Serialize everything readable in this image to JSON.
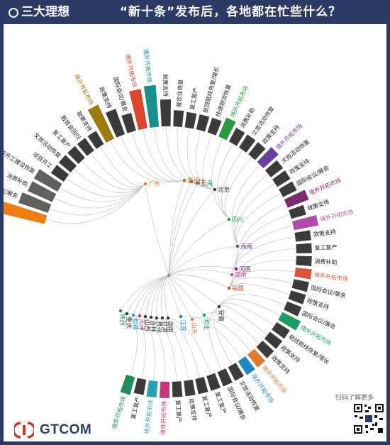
{
  "header": {
    "logo_text": "三大理想",
    "title": "“新十条”发布后，各地都在忙些什么？"
  },
  "footer": {
    "brand": "GTCOM",
    "scan_text": "扫码了解更多"
  },
  "colors": {
    "header_bg": "#2c3a66",
    "ring": "#3b3b3b",
    "leader_line": "#c9c9c9"
  },
  "chart_data": {
    "type": "radial-tree",
    "segments": [
      {
        "label": "境外开拓市场",
        "color": "#f07d11",
        "value": 1.0
      },
      {
        "label": "国际会议/展会",
        "color": "#606060",
        "value": 0.55
      },
      {
        "label": "消费补助",
        "color": "#606060",
        "value": 0.45
      },
      {
        "label": "基础设施建设开工建设恢复",
        "color": "#606060",
        "value": 0.45
      },
      {
        "label": "项目开工",
        "color": "#3b3b3b",
        "value": 0.18
      },
      {
        "label": "文旅活动恢复",
        "color": "#3b3b3b",
        "value": 0.18
      },
      {
        "label": "复工复产",
        "color": "#3b3b3b",
        "value": 0.18
      },
      {
        "label": "服贸会回归",
        "color": "#3b3b3b",
        "value": 0.18
      },
      {
        "label": "政策支持",
        "color": "#3b3b3b",
        "value": 0.18
      },
      {
        "label": "境外开拓市场",
        "color": "#9c7b10",
        "value": 0.7
      },
      {
        "label": "政策支持",
        "color": "#3b3b3b",
        "value": 0.45
      },
      {
        "label": "国际会议/展会",
        "color": "#3b3b3b",
        "value": 0.25
      },
      {
        "label": "境外开拓市场",
        "color": "#e0452c",
        "value": 0.75
      },
      {
        "label": "境外开拓市场",
        "color": "#1b8f8b",
        "value": 0.8
      },
      {
        "label": "政策支持",
        "color": "#3b3b3b",
        "value": 0.45
      },
      {
        "label": "餐饮业恢复",
        "color": "#3b3b3b",
        "value": 0.2
      },
      {
        "label": "复工复产",
        "color": "#3b3b3b",
        "value": 0.18
      },
      {
        "label": "航班航线恢复/增长",
        "color": "#3b3b3b",
        "value": 0.18
      },
      {
        "label": "快递物流恢复",
        "color": "#3b3b3b",
        "value": 0.18
      },
      {
        "label": "境外开拓市场",
        "color": "#2b9a3f",
        "value": 0.3
      },
      {
        "label": "消费补助",
        "color": "#3b3b3b",
        "value": 0.18
      },
      {
        "label": "文旅活动恢复",
        "color": "#3b3b3b",
        "value": 0.18
      },
      {
        "label": "政策支持",
        "color": "#3b3b3b",
        "value": 0.18
      },
      {
        "label": "境外开拓市场",
        "color": "#6a3fa0",
        "value": 0.3
      },
      {
        "label": "文旅活动恢复",
        "color": "#3b3b3b",
        "value": 0.18
      },
      {
        "label": "政策支持",
        "color": "#3b3b3b",
        "value": 0.18
      },
      {
        "label": "国际会议/展会",
        "color": "#3b3b3b",
        "value": 0.18
      },
      {
        "label": "境外开拓市场",
        "color": "#7a2d6e",
        "value": 0.35
      },
      {
        "label": "政策支持",
        "color": "#3b3b3b",
        "value": 0.18
      },
      {
        "label": "境外开拓市场",
        "color": "#b24ba8",
        "value": 0.4
      },
      {
        "label": "政策支持",
        "color": "#3b3b3b",
        "value": 0.18
      },
      {
        "label": "复工复产",
        "color": "#3b3b3b",
        "value": 0.18
      },
      {
        "label": "消费补助",
        "color": "#3b3b3b",
        "value": 0.18
      },
      {
        "label": "境外开拓市场",
        "color": "#d9533f",
        "value": 0.2
      },
      {
        "label": "国际会议/展会",
        "color": "#3b3b3b",
        "value": 0.18
      },
      {
        "label": "政策支持",
        "color": "#3b3b3b",
        "value": 0.18
      },
      {
        "label": "国际会议/展会",
        "color": "#3b3b3b",
        "value": 0.18
      },
      {
        "label": "境外开拓市场",
        "color": "#1d9e64",
        "value": 0.3
      },
      {
        "label": "航班航线恢复/增长",
        "color": "#3b3b3b",
        "value": 0.18
      },
      {
        "label": "政策支持",
        "color": "#3b3b3b",
        "value": 0.18
      },
      {
        "label": "政策支持",
        "color": "#3b3b3b",
        "value": 0.18
      },
      {
        "label": "境外开拓市场",
        "color": "#e07b2a",
        "value": 0.2
      },
      {
        "label": "境外开拓市场",
        "color": "#1e86c5",
        "value": 0.2
      },
      {
        "label": "文旅活动恢复",
        "color": "#3b3b3b",
        "value": 0.18
      },
      {
        "label": "国际会议/展会",
        "color": "#3b3b3b",
        "value": 0.18
      },
      {
        "label": "复工复产",
        "color": "#3b3b3b",
        "value": 0.18
      },
      {
        "label": "复工复产",
        "color": "#3b3b3b",
        "value": 0.18
      },
      {
        "label": "政策支持",
        "color": "#3b3b3b",
        "value": 0.18
      },
      {
        "label": "复工复产",
        "color": "#3b3b3b",
        "value": 0.18
      },
      {
        "label": "境外开拓市场",
        "color": "#c2377a",
        "value": 0.2
      },
      {
        "label": "境外开拓市场",
        "color": "#2aa1b5",
        "value": 0.2
      },
      {
        "label": "复工复产",
        "color": "#3b3b3b",
        "value": 0.18
      },
      {
        "label": "境外开拓市场",
        "color": "#1d8f5c",
        "value": 0.25
      }
    ],
    "provinces": [
      {
        "name": "广东",
        "color": "#f07d11"
      },
      {
        "name": "浙江",
        "color": "#9c7b10"
      },
      {
        "name": "湖北",
        "color": "#e0452c"
      },
      {
        "name": "上海",
        "color": "#1b8f8b"
      },
      {
        "name": "北京",
        "color": "#3b3b3b"
      },
      {
        "name": "四川",
        "color": "#2b9a3f"
      },
      {
        "name": "海南",
        "color": "#6a3fa0"
      },
      {
        "name": "河南",
        "color": "#7a2d6e"
      },
      {
        "name": "湖南",
        "color": "#b24ba8"
      },
      {
        "name": "福建",
        "color": "#d9533f"
      },
      {
        "name": "安徽",
        "color": "#3b3b3b"
      },
      {
        "name": "河北",
        "color": "#1d9e64"
      },
      {
        "name": "山东",
        "color": "#e07b2a"
      },
      {
        "name": "江苏",
        "color": "#1e86c5"
      },
      {
        "name": "湖南",
        "color": "#3b3b3b"
      },
      {
        "name": "甘肃",
        "color": "#3b3b3b"
      },
      {
        "name": "贵州",
        "color": "#3b3b3b"
      },
      {
        "name": "吉林",
        "color": "#3b3b3b"
      },
      {
        "name": "山西",
        "color": "#3b3b3b"
      },
      {
        "name": "天津",
        "color": "#c2377a"
      },
      {
        "name": "新疆",
        "color": "#2aa1b5"
      },
      {
        "name": "重庆",
        "color": "#3b3b3b"
      },
      {
        "name": "陕西",
        "color": "#1d8f5c"
      }
    ]
  }
}
